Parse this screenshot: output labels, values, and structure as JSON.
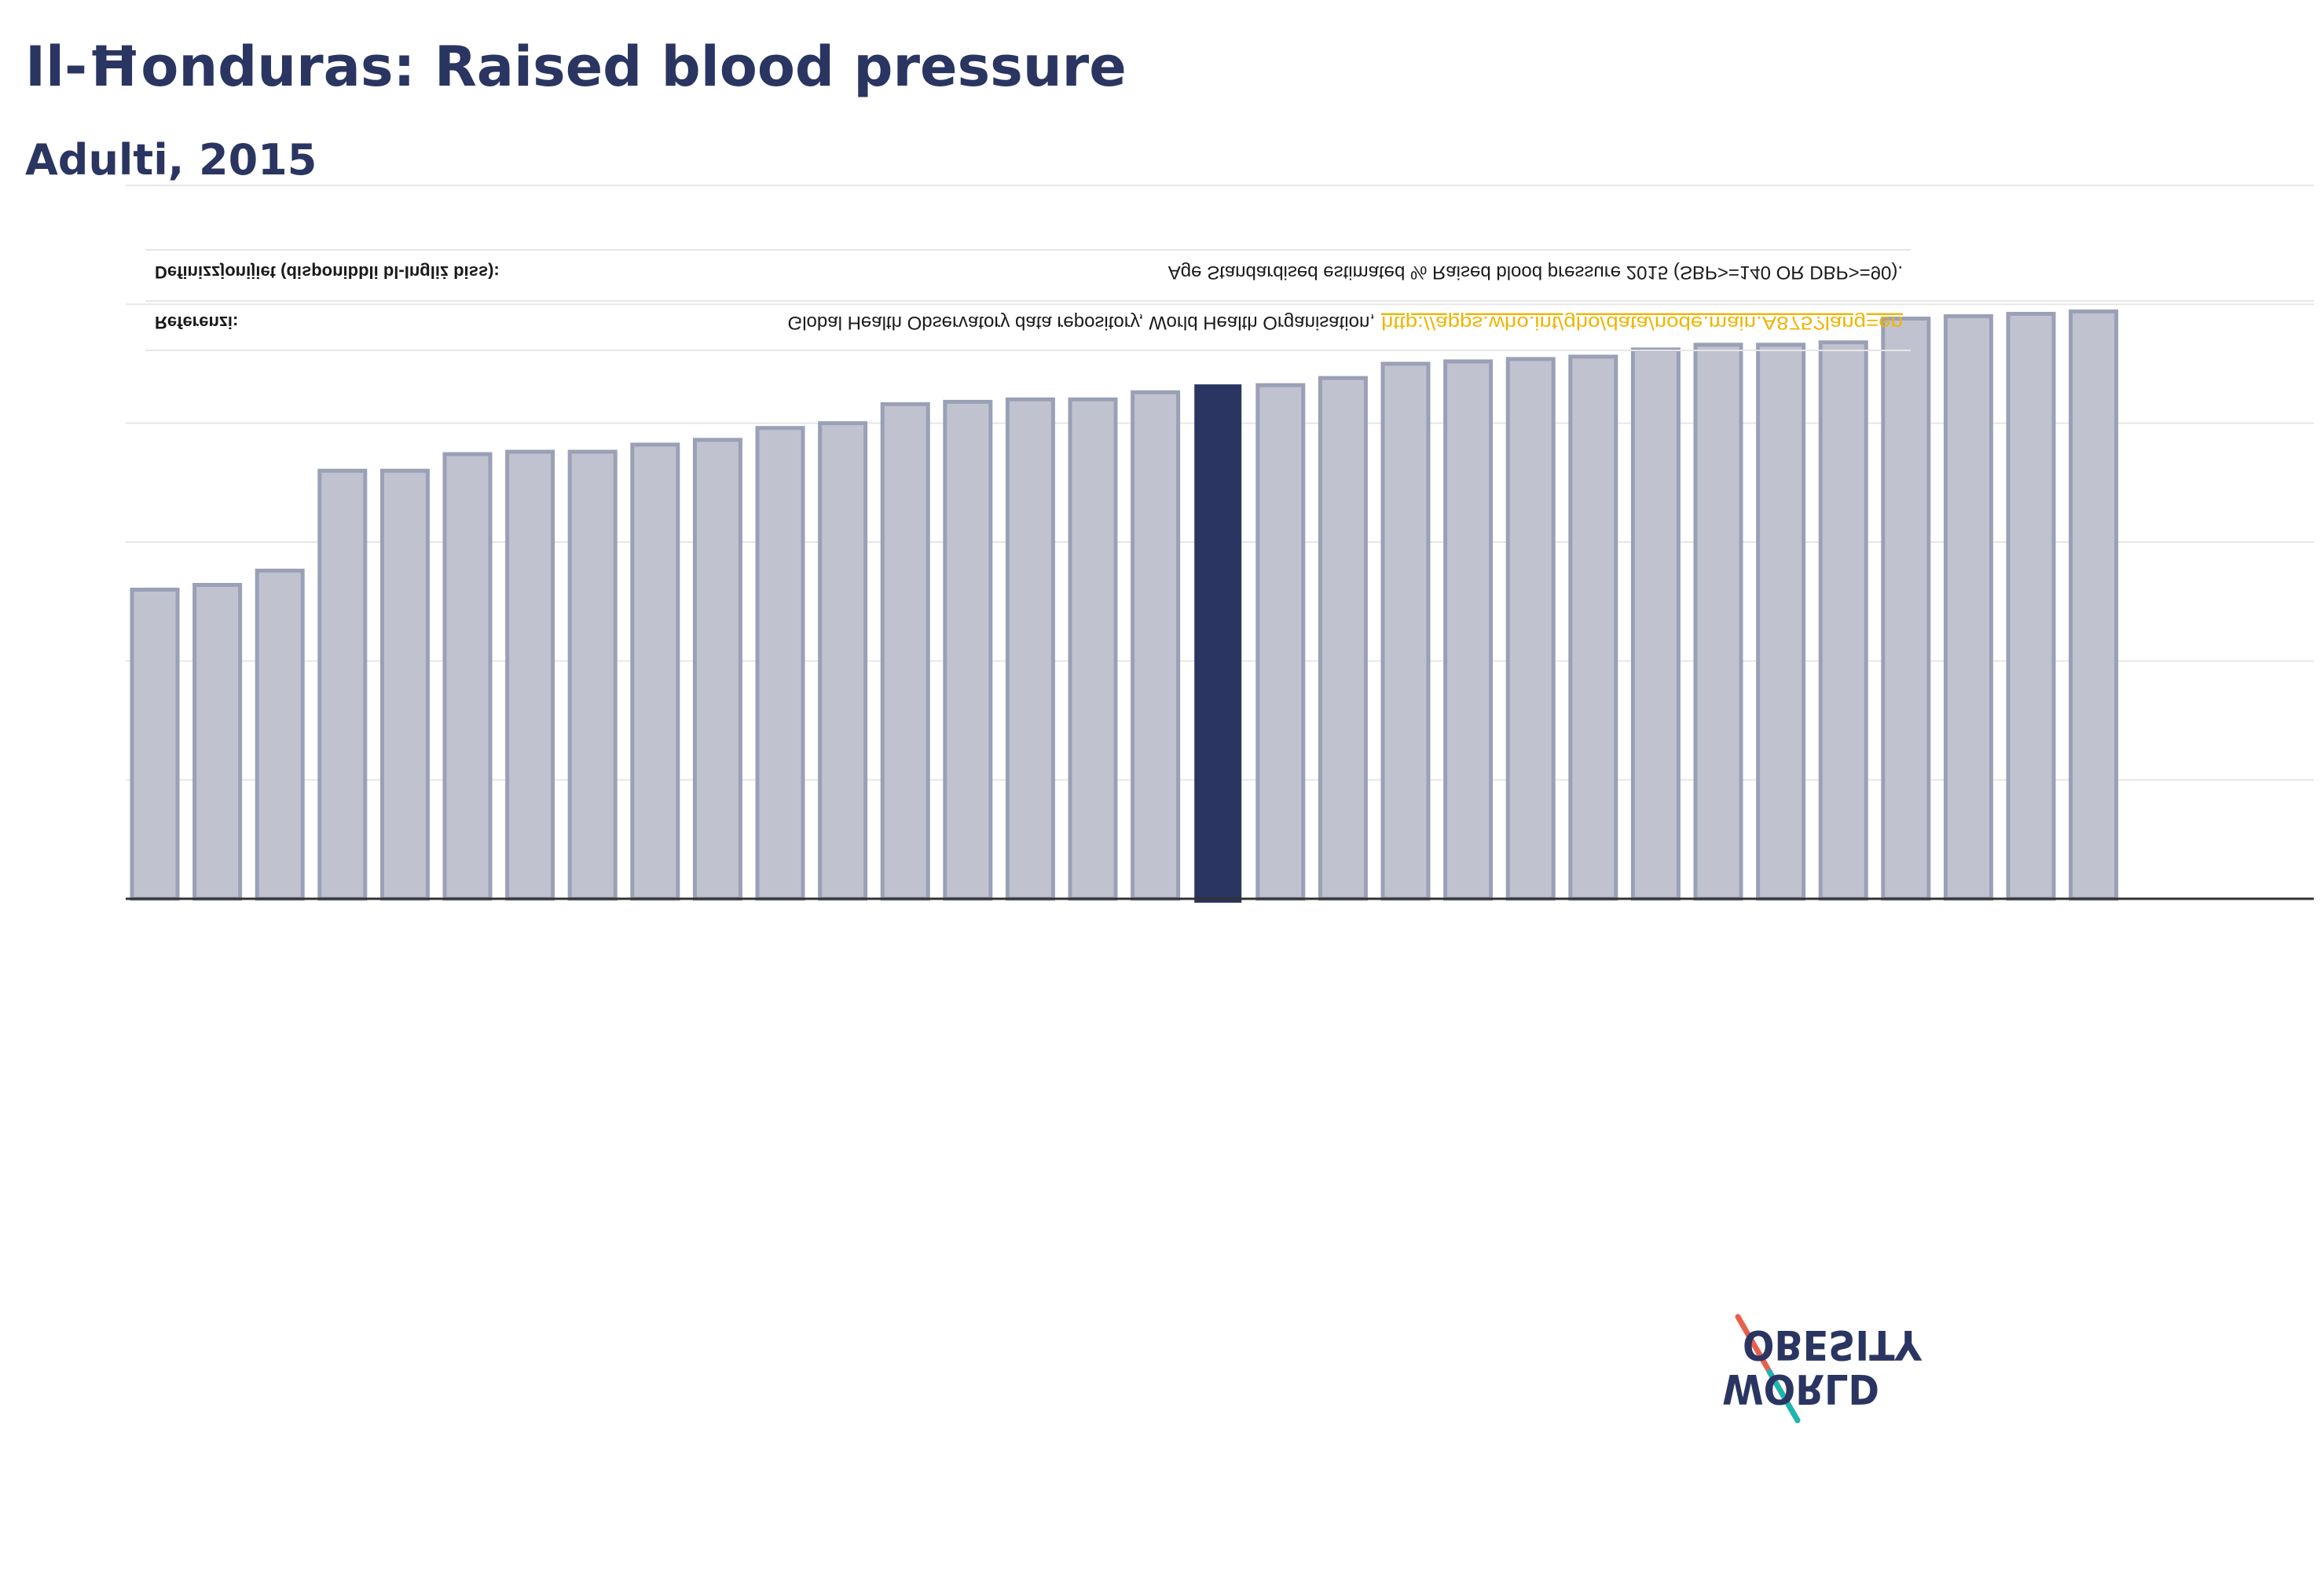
{
  "title": "Il-Ħonduras: Raised blood pressure",
  "subtitle": "Adulti, 2015",
  "notes": {
    "definitions_label": "Definizzjonijiet (disponibbli bl-Ingliż biss):",
    "definitions_text": "Age Standardised estimated % Raised blood pressure 2015 (SBP>=140 OR DBP>=90).",
    "references_label": "Referenzi:",
    "references_text": "Global Health Observatory data repository, World Health Organisation,",
    "references_link": "http://apps.who.int/gho/data/node.main.A875?lang=en"
  },
  "logo": {
    "line1": "OBESITY",
    "line2": "WORLD"
  },
  "colors": {
    "bar": "#c0c3cf",
    "bar_border": "#9aa0b6",
    "highlight": "#2a3561",
    "link": "#f0b400",
    "axis": "#333333",
    "grid": "#e6e6e6"
  },
  "chart_data": {
    "type": "bar",
    "ylim": [
      0,
      30
    ],
    "gridlines": [
      0,
      5,
      10,
      15,
      20,
      25,
      30
    ],
    "values": [
      13.0,
      13.2,
      13.8,
      18.0,
      18.0,
      18.7,
      18.8,
      18.8,
      19.1,
      19.3,
      19.8,
      20.0,
      20.8,
      20.9,
      21.0,
      21.0,
      21.3,
      21.6,
      21.6,
      21.9,
      22.5,
      22.6,
      22.7,
      22.8,
      23.1,
      23.3,
      23.3,
      23.4,
      24.4,
      24.5,
      24.6,
      24.7
    ],
    "highlight_index": 17
  }
}
